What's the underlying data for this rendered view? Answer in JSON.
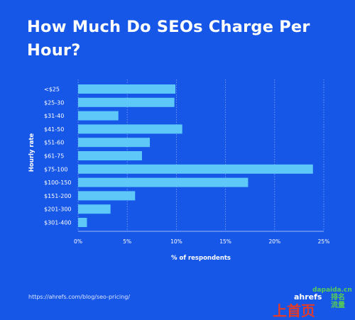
{
  "title": "How Much Do SEOs Charge Per Hour?",
  "source": "https://ahrefs.com/blog/seo-pricing/",
  "logo": "ahrefs",
  "watermark": {
    "site": "dapaida.cn",
    "text_large": "上首页",
    "text_small": "排名流量"
  },
  "colors": {
    "background": "#1757e8",
    "bar": "#5ec8f8",
    "text": "#ffffff"
  },
  "chart_data": {
    "type": "bar",
    "orientation": "horizontal",
    "categories": [
      "<$25",
      "$25-30",
      "$31-40",
      "$41-50",
      "$51-60",
      "$61-75",
      "$75-100",
      "$100-150",
      "$151-200",
      "$201-300",
      "$301-400"
    ],
    "values": [
      9.9,
      9.8,
      4.1,
      10.6,
      7.3,
      6.5,
      23.9,
      17.3,
      5.8,
      3.3,
      0.9
    ],
    "xlabel": "% of respondents",
    "ylabel": "Hourly rate",
    "xlim": [
      0,
      25
    ],
    "xticks": [
      "0%",
      "5%",
      "10%",
      "15%",
      "20%",
      "25%"
    ],
    "grid": true
  }
}
